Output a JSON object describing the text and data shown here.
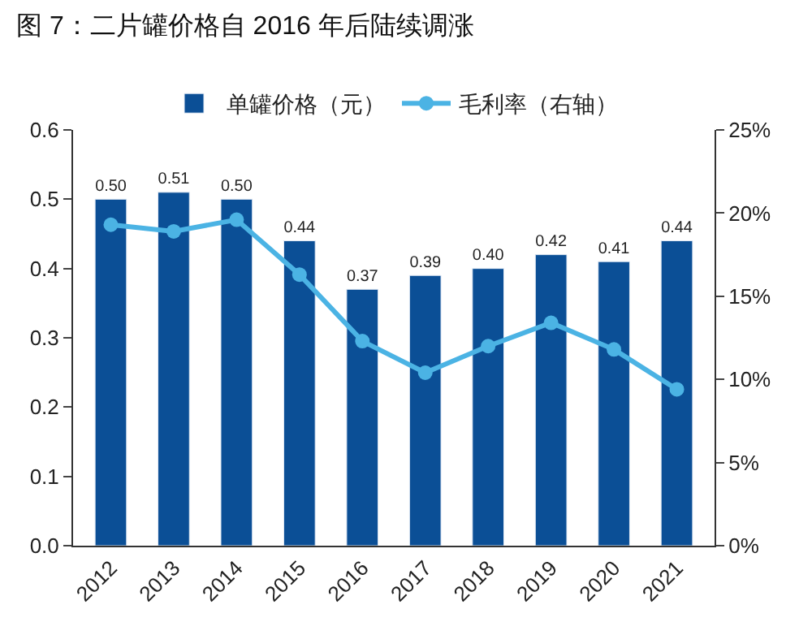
{
  "chart_data": {
    "type": "bar",
    "title": "图 7：二片罐价格自 2016 年后陆续调涨",
    "categories": [
      "2012",
      "2013",
      "2014",
      "2015",
      "2016",
      "2017",
      "2018",
      "2019",
      "2020",
      "2021"
    ],
    "series": [
      {
        "name": "单罐价格（元）",
        "color": "#0b4f96",
        "values": [
          0.5,
          0.51,
          0.5,
          0.44,
          0.37,
          0.39,
          0.4,
          0.42,
          0.41,
          0.44
        ],
        "value_labels": [
          "0.50",
          "0.51",
          "0.50",
          "0.44",
          "0.37",
          "0.39",
          "0.40",
          "0.42",
          "0.41",
          "0.44"
        ]
      },
      {
        "name": "毛利率（右轴）",
        "type": "line",
        "axis": "y2",
        "color": "#4bb3e4",
        "marker": "circle",
        "values": [
          19.3,
          18.9,
          19.6,
          16.3,
          12.3,
          10.4,
          12.0,
          13.4,
          11.8,
          9.4
        ]
      }
    ],
    "ylim": [
      0,
      0.6
    ],
    "yticks": [
      {
        "value": 0,
        "label": "0.0"
      },
      0.1,
      0.2,
      0.3,
      0.4,
      0.5,
      0.6
    ],
    "y2lim": [
      0,
      25
    ],
    "y2ticks": [
      {
        "value": 0,
        "label": "0%"
      },
      {
        "value": 5,
        "label": "5%"
      },
      {
        "value": 10,
        "label": "10%"
      },
      {
        "value": 15,
        "label": "15%"
      },
      {
        "value": 20,
        "label": "20%"
      },
      {
        "value": 25,
        "label": "25%"
      }
    ],
    "legend": "top"
  }
}
